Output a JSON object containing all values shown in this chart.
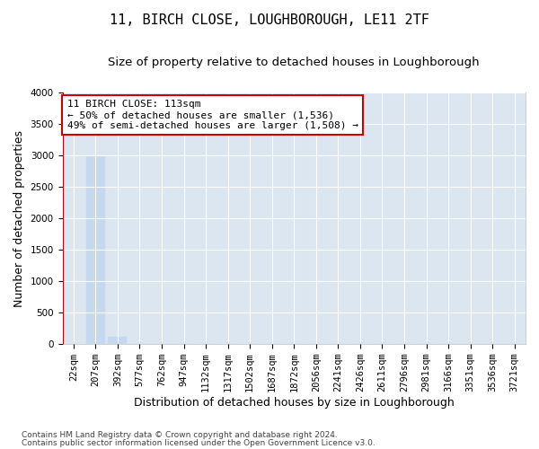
{
  "title": "11, BIRCH CLOSE, LOUGHBOROUGH, LE11 2TF",
  "subtitle": "Size of property relative to detached houses in Loughborough",
  "xlabel": "Distribution of detached houses by size in Loughborough",
  "ylabel": "Number of detached properties",
  "footnote1": "Contains HM Land Registry data © Crown copyright and database right 2024.",
  "footnote2": "Contains public sector information licensed under the Open Government Licence v3.0.",
  "categories": [
    "22sqm",
    "207sqm",
    "392sqm",
    "577sqm",
    "762sqm",
    "947sqm",
    "1132sqm",
    "1317sqm",
    "1502sqm",
    "1687sqm",
    "1872sqm",
    "2056sqm",
    "2241sqm",
    "2426sqm",
    "2611sqm",
    "2796sqm",
    "2981sqm",
    "3166sqm",
    "3351sqm",
    "3536sqm",
    "3721sqm"
  ],
  "bar_values": [
    0,
    2985,
    110,
    0,
    0,
    0,
    0,
    0,
    0,
    0,
    0,
    0,
    0,
    0,
    0,
    0,
    0,
    0,
    0,
    0,
    0
  ],
  "bar_color": "#c5d8ee",
  "bar_edge_color": "#c5d8ee",
  "ylim": [
    0,
    4000
  ],
  "yticks": [
    0,
    500,
    1000,
    1500,
    2000,
    2500,
    3000,
    3500,
    4000
  ],
  "annotation_text": "11 BIRCH CLOSE: 113sqm\n← 50% of detached houses are smaller (1,536)\n49% of semi-detached houses are larger (1,508) →",
  "annotation_box_color": "#ffffff",
  "annotation_box_edge_color": "#cc0000",
  "vline_color": "#cc0000",
  "bg_color": "#dce6f1",
  "grid_color": "#ffffff",
  "title_fontsize": 11,
  "subtitle_fontsize": 9.5,
  "tick_fontsize": 7.5,
  "label_fontsize": 9
}
